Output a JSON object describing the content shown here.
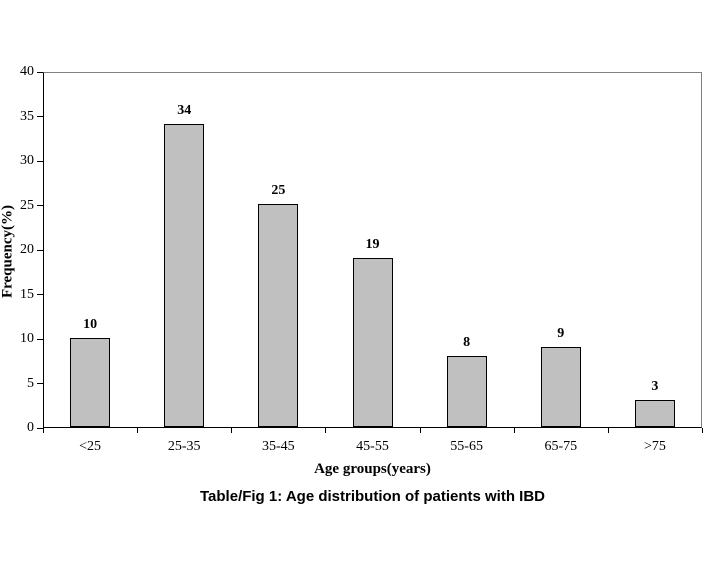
{
  "figure": {
    "caption": "Table/Fig 1: Age distribution of patients with IBD"
  },
  "chart_data": {
    "type": "bar",
    "title": "Table/Fig 1: Age distribution of patients with IBD",
    "categories": [
      "<25",
      "25-35",
      "35-45",
      "45-55",
      "55-65",
      "65-75",
      ">75"
    ],
    "values": [
      10,
      34,
      25,
      19,
      8,
      9,
      3
    ],
    "xlabel": "Age groups(years)",
    "ylabel": "Frequency(%)",
    "ylim": [
      0,
      40
    ],
    "ytick_step": 5,
    "grid": false,
    "legend": false,
    "colors": {
      "bar_fill": "#c0c0c0",
      "bar_border": "#000000",
      "axis": "#000000",
      "plot_border": "#808080",
      "background": "#ffffff"
    }
  }
}
